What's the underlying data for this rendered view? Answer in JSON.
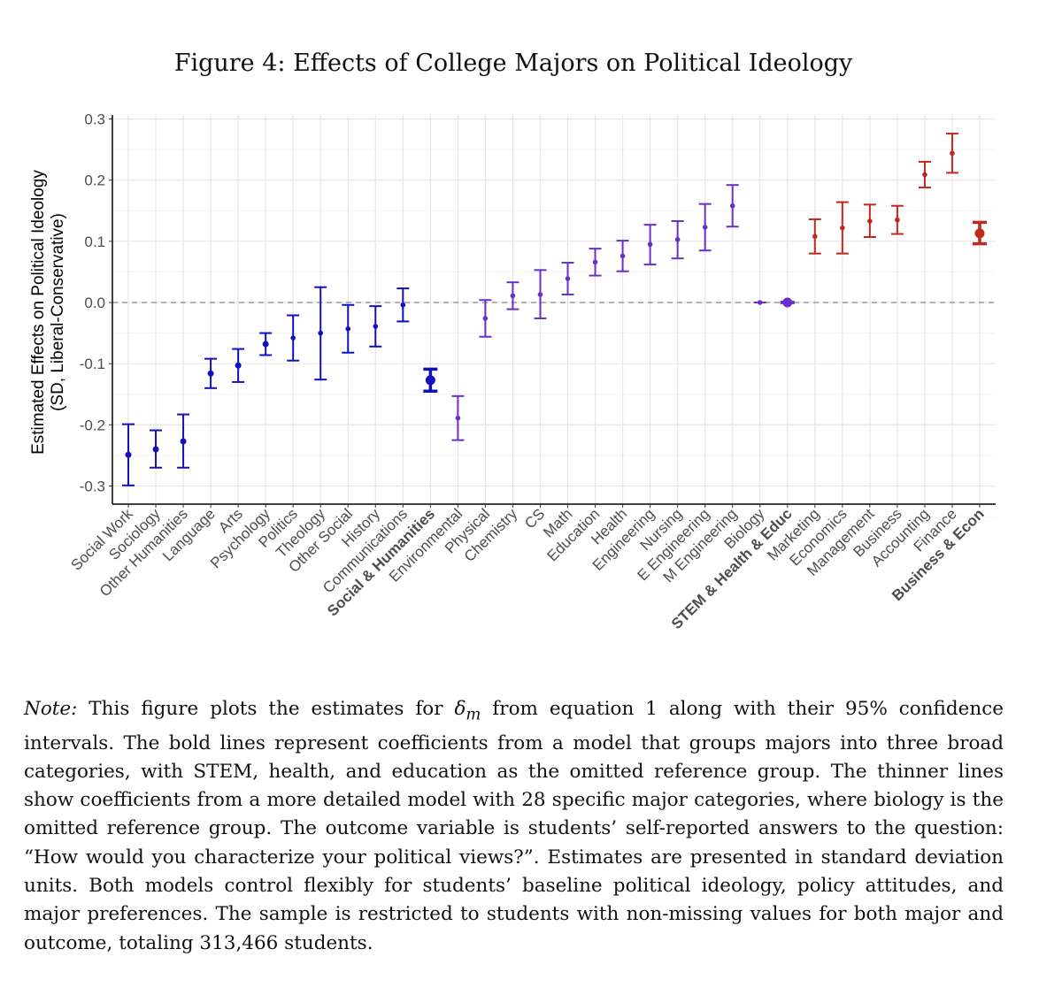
{
  "title": "Figure 4: Effects of College Majors on Political Ideology",
  "chart_data": {
    "type": "errorbar",
    "ylabel_line1": "Estimated Effects on Political Ideology",
    "ylabel_line2": "(SD, Liberal-Conservative)",
    "ylim": [
      -0.32,
      0.3
    ],
    "yticks": [
      "0.3",
      "0.2",
      "0.1",
      "0.0",
      "-0.1",
      "-0.2",
      "-0.3"
    ],
    "ytick_values": [
      0.3,
      0.2,
      0.1,
      0.0,
      -0.1,
      -0.2,
      -0.3
    ],
    "grid": true,
    "reference_line": 0.0,
    "colors": {
      "social": "#1010c0",
      "stem": "#6a2fc8",
      "business": "#c0281e"
    },
    "points": [
      {
        "label": "Social Work",
        "group": "social",
        "est": -0.249,
        "lo": -0.299,
        "hi": -0.199,
        "bold": false
      },
      {
        "label": "Sociology",
        "group": "social",
        "est": -0.24,
        "lo": -0.27,
        "hi": -0.209,
        "bold": false
      },
      {
        "label": "Other Humanities",
        "group": "social",
        "est": -0.227,
        "lo": -0.27,
        "hi": -0.183,
        "bold": false
      },
      {
        "label": "Language",
        "group": "social",
        "est": -0.116,
        "lo": -0.14,
        "hi": -0.092,
        "bold": false
      },
      {
        "label": "Arts",
        "group": "social",
        "est": -0.103,
        "lo": -0.13,
        "hi": -0.076,
        "bold": false
      },
      {
        "label": "Psychology",
        "group": "social",
        "est": -0.068,
        "lo": -0.086,
        "hi": -0.05,
        "bold": false
      },
      {
        "label": "Politics",
        "group": "social",
        "est": -0.058,
        "lo": -0.095,
        "hi": -0.021,
        "bold": false
      },
      {
        "label": "Theology",
        "group": "social",
        "est": -0.05,
        "lo": -0.126,
        "hi": 0.025,
        "bold": false
      },
      {
        "label": "Other Social",
        "group": "social",
        "est": -0.043,
        "lo": -0.082,
        "hi": -0.004,
        "bold": false
      },
      {
        "label": "History",
        "group": "social",
        "est": -0.039,
        "lo": -0.072,
        "hi": -0.006,
        "bold": false
      },
      {
        "label": "Communications",
        "group": "social",
        "est": -0.004,
        "lo": -0.031,
        "hi": 0.023,
        "bold": false
      },
      {
        "label": "Social & Humanities",
        "group": "social",
        "est": -0.127,
        "lo": -0.145,
        "hi": -0.109,
        "bold": true
      },
      {
        "label": "Environmental",
        "group": "stem",
        "est": -0.189,
        "lo": -0.225,
        "hi": -0.153,
        "bold": false
      },
      {
        "label": "Physical",
        "group": "stem",
        "est": -0.026,
        "lo": -0.056,
        "hi": 0.004,
        "bold": false
      },
      {
        "label": "Chemistry",
        "group": "stem",
        "est": 0.011,
        "lo": -0.011,
        "hi": 0.033,
        "bold": false
      },
      {
        "label": "CS",
        "group": "stem",
        "est": 0.013,
        "lo": -0.026,
        "hi": 0.053,
        "bold": false
      },
      {
        "label": "Math",
        "group": "stem",
        "est": 0.039,
        "lo": 0.013,
        "hi": 0.065,
        "bold": false
      },
      {
        "label": "Education",
        "group": "stem",
        "est": 0.066,
        "lo": 0.044,
        "hi": 0.088,
        "bold": false
      },
      {
        "label": "Health",
        "group": "stem",
        "est": 0.076,
        "lo": 0.051,
        "hi": 0.101,
        "bold": false
      },
      {
        "label": "Engineering",
        "group": "stem",
        "est": 0.095,
        "lo": 0.062,
        "hi": 0.127,
        "bold": false
      },
      {
        "label": "Nursing",
        "group": "stem",
        "est": 0.103,
        "lo": 0.072,
        "hi": 0.133,
        "bold": false
      },
      {
        "label": "E Engineering",
        "group": "stem",
        "est": 0.123,
        "lo": 0.085,
        "hi": 0.161,
        "bold": false
      },
      {
        "label": "M Engineering",
        "group": "stem",
        "est": 0.158,
        "lo": 0.124,
        "hi": 0.192,
        "bold": false
      },
      {
        "label": "Biology",
        "group": "stem",
        "est": 0.0,
        "lo": 0.0,
        "hi": 0.0,
        "bold": false
      },
      {
        "label": "STEM & Health & Educ",
        "group": "stem",
        "est": 0.0,
        "lo": 0.0,
        "hi": 0.0,
        "bold": true
      },
      {
        "label": "Marketing",
        "group": "business",
        "est": 0.108,
        "lo": 0.08,
        "hi": 0.136,
        "bold": false
      },
      {
        "label": "Economics",
        "group": "business",
        "est": 0.122,
        "lo": 0.08,
        "hi": 0.164,
        "bold": false
      },
      {
        "label": "Management",
        "group": "business",
        "est": 0.133,
        "lo": 0.107,
        "hi": 0.16,
        "bold": false
      },
      {
        "label": "Business",
        "group": "business",
        "est": 0.135,
        "lo": 0.112,
        "hi": 0.158,
        "bold": false
      },
      {
        "label": "Accounting",
        "group": "business",
        "est": 0.209,
        "lo": 0.188,
        "hi": 0.23,
        "bold": false
      },
      {
        "label": "Finance",
        "group": "business",
        "est": 0.244,
        "lo": 0.212,
        "hi": 0.276,
        "bold": false
      },
      {
        "label": "Business & Econ",
        "group": "business",
        "est": 0.113,
        "lo": 0.096,
        "hi": 0.131,
        "bold": true
      }
    ]
  },
  "note": {
    "lead": "Note:",
    "pre": " This figure plots the estimates for ",
    "symbol": "δ",
    "subscript": "m",
    "post": " from equation 1 along with their 95% confidence intervals. The bold lines represent coefficients from a model that groups majors into three broad categories, with STEM, health, and education as the omitted reference group. The thinner lines show coefficients from a more detailed model with 28 specific major categories, where biology is the omitted reference group. The outcome variable is students’ self-reported answers to the question: “How would you characterize your political views?”. Estimates are presented in standard deviation units. Both models control flexibly for students’ baseline political ideology, policy attitudes, and major preferences. The sample is restricted to students with non-missing values for both major and outcome, totaling 313,466 students."
  }
}
